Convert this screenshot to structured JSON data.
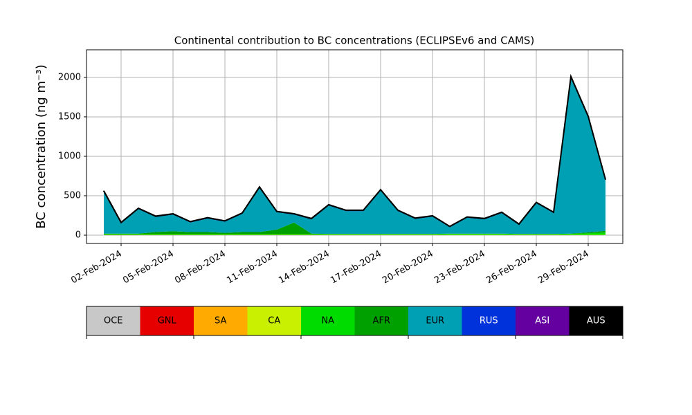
{
  "chart_data": {
    "type": "stacked-area",
    "title": "Continental contribution to BC concentrations (ECLIPSEv6 and CAMS)",
    "y_label": "BC concentration (ng m⁻³)",
    "x": [
      "2024-02-01",
      "2024-02-02",
      "2024-02-03",
      "2024-02-04",
      "2024-02-05",
      "2024-02-06",
      "2024-02-07",
      "2024-02-08",
      "2024-02-09",
      "2024-02-10",
      "2024-02-11",
      "2024-02-12",
      "2024-02-13",
      "2024-02-14",
      "2024-02-15",
      "2024-02-16",
      "2024-02-17",
      "2024-02-18",
      "2024-02-19",
      "2024-02-20",
      "2024-02-21",
      "2024-02-22",
      "2024-02-23",
      "2024-02-24",
      "2024-02-25",
      "2024-02-26",
      "2024-02-27",
      "2024-02-28",
      "2024-02-29",
      "2024-03-01"
    ],
    "series": [
      {
        "name": "OCE",
        "color": "#c8c8c8",
        "values": [
          0,
          0,
          0,
          0,
          0,
          0,
          0,
          0,
          0,
          0,
          0,
          0,
          0,
          0,
          0,
          0,
          0,
          0,
          0,
          0,
          0,
          0,
          0,
          0,
          0,
          0,
          0,
          0,
          0,
          0
        ]
      },
      {
        "name": "GNL",
        "color": "#e60000",
        "values": [
          0,
          0,
          0,
          0,
          0,
          0,
          0,
          0,
          0,
          0,
          0,
          0,
          0,
          0,
          0,
          0,
          0,
          0,
          0,
          0,
          0,
          0,
          0,
          0,
          0,
          0,
          0,
          0,
          0,
          0
        ]
      },
      {
        "name": "SA",
        "color": "#ffaa00",
        "values": [
          0,
          0,
          0,
          0,
          0,
          0,
          0,
          0,
          0,
          0,
          0,
          0,
          0,
          0,
          0,
          0,
          0,
          0,
          0,
          0,
          0,
          0,
          0,
          0,
          0,
          0,
          0,
          0,
          0,
          0
        ]
      },
      {
        "name": "CA",
        "color": "#c8f000",
        "values": [
          5,
          5,
          5,
          5,
          5,
          5,
          5,
          5,
          5,
          5,
          5,
          5,
          5,
          5,
          5,
          5,
          5,
          5,
          5,
          5,
          5,
          5,
          5,
          5,
          5,
          5,
          5,
          5,
          5,
          5
        ]
      },
      {
        "name": "NA",
        "color": "#00dc00",
        "values": [
          5,
          5,
          5,
          5,
          5,
          5,
          5,
          5,
          5,
          5,
          5,
          5,
          5,
          5,
          5,
          5,
          5,
          5,
          5,
          5,
          10,
          10,
          10,
          10,
          5,
          5,
          5,
          10,
          20,
          30
        ]
      },
      {
        "name": "AFR",
        "color": "#00a000",
        "values": [
          10,
          10,
          10,
          30,
          40,
          30,
          30,
          20,
          30,
          30,
          60,
          150,
          10,
          5,
          5,
          5,
          5,
          5,
          5,
          5,
          5,
          5,
          5,
          5,
          5,
          5,
          5,
          5,
          10,
          20
        ]
      },
      {
        "name": "EUR",
        "color": "#00a0b4",
        "values": [
          530,
          130,
          310,
          190,
          210,
          120,
          170,
          140,
          230,
          560,
          220,
          100,
          180,
          360,
          290,
          290,
          550,
          290,
          190,
          220,
          80,
          200,
          180,
          260,
          115,
          390,
          265,
          1980,
          1460,
          640
        ]
      },
      {
        "name": "RUS",
        "color": "#0032dc",
        "values": [
          5,
          5,
          5,
          5,
          5,
          5,
          5,
          5,
          5,
          5,
          5,
          5,
          5,
          5,
          5,
          5,
          5,
          5,
          5,
          5,
          5,
          5,
          5,
          5,
          5,
          5,
          5,
          5,
          5,
          5
        ]
      },
      {
        "name": "ASI",
        "color": "#6400a0",
        "values": [
          5,
          5,
          5,
          5,
          5,
          5,
          5,
          5,
          5,
          5,
          5,
          5,
          5,
          5,
          5,
          5,
          5,
          5,
          5,
          5,
          5,
          5,
          5,
          5,
          5,
          5,
          5,
          5,
          5,
          5
        ]
      },
      {
        "name": "AUS",
        "color": "#000000",
        "values": [
          2,
          2,
          2,
          2,
          2,
          2,
          2,
          2,
          2,
          2,
          2,
          2,
          2,
          2,
          2,
          2,
          2,
          2,
          2,
          2,
          2,
          2,
          2,
          2,
          2,
          2,
          2,
          2,
          2,
          2
        ]
      }
    ],
    "xlim": [
      "2024-01-31",
      "2024-03-02"
    ],
    "xticks": [
      {
        "value": "2024-02-02",
        "label": "02-Feb-2024"
      },
      {
        "value": "2024-02-05",
        "label": "05-Feb-2024"
      },
      {
        "value": "2024-02-08",
        "label": "08-Feb-2024"
      },
      {
        "value": "2024-02-11",
        "label": "11-Feb-2024"
      },
      {
        "value": "2024-02-14",
        "label": "14-Feb-2024"
      },
      {
        "value": "2024-02-17",
        "label": "17-Feb-2024"
      },
      {
        "value": "2024-02-20",
        "label": "20-Feb-2024"
      },
      {
        "value": "2024-02-23",
        "label": "23-Feb-2024"
      },
      {
        "value": "2024-02-26",
        "label": "26-Feb-2024"
      },
      {
        "value": "2024-02-29",
        "label": "29-Feb-2024"
      }
    ],
    "ylim": [
      -105,
      2350
    ],
    "yticks": [
      0,
      500,
      1000,
      1500,
      2000
    ],
    "grid": true
  }
}
